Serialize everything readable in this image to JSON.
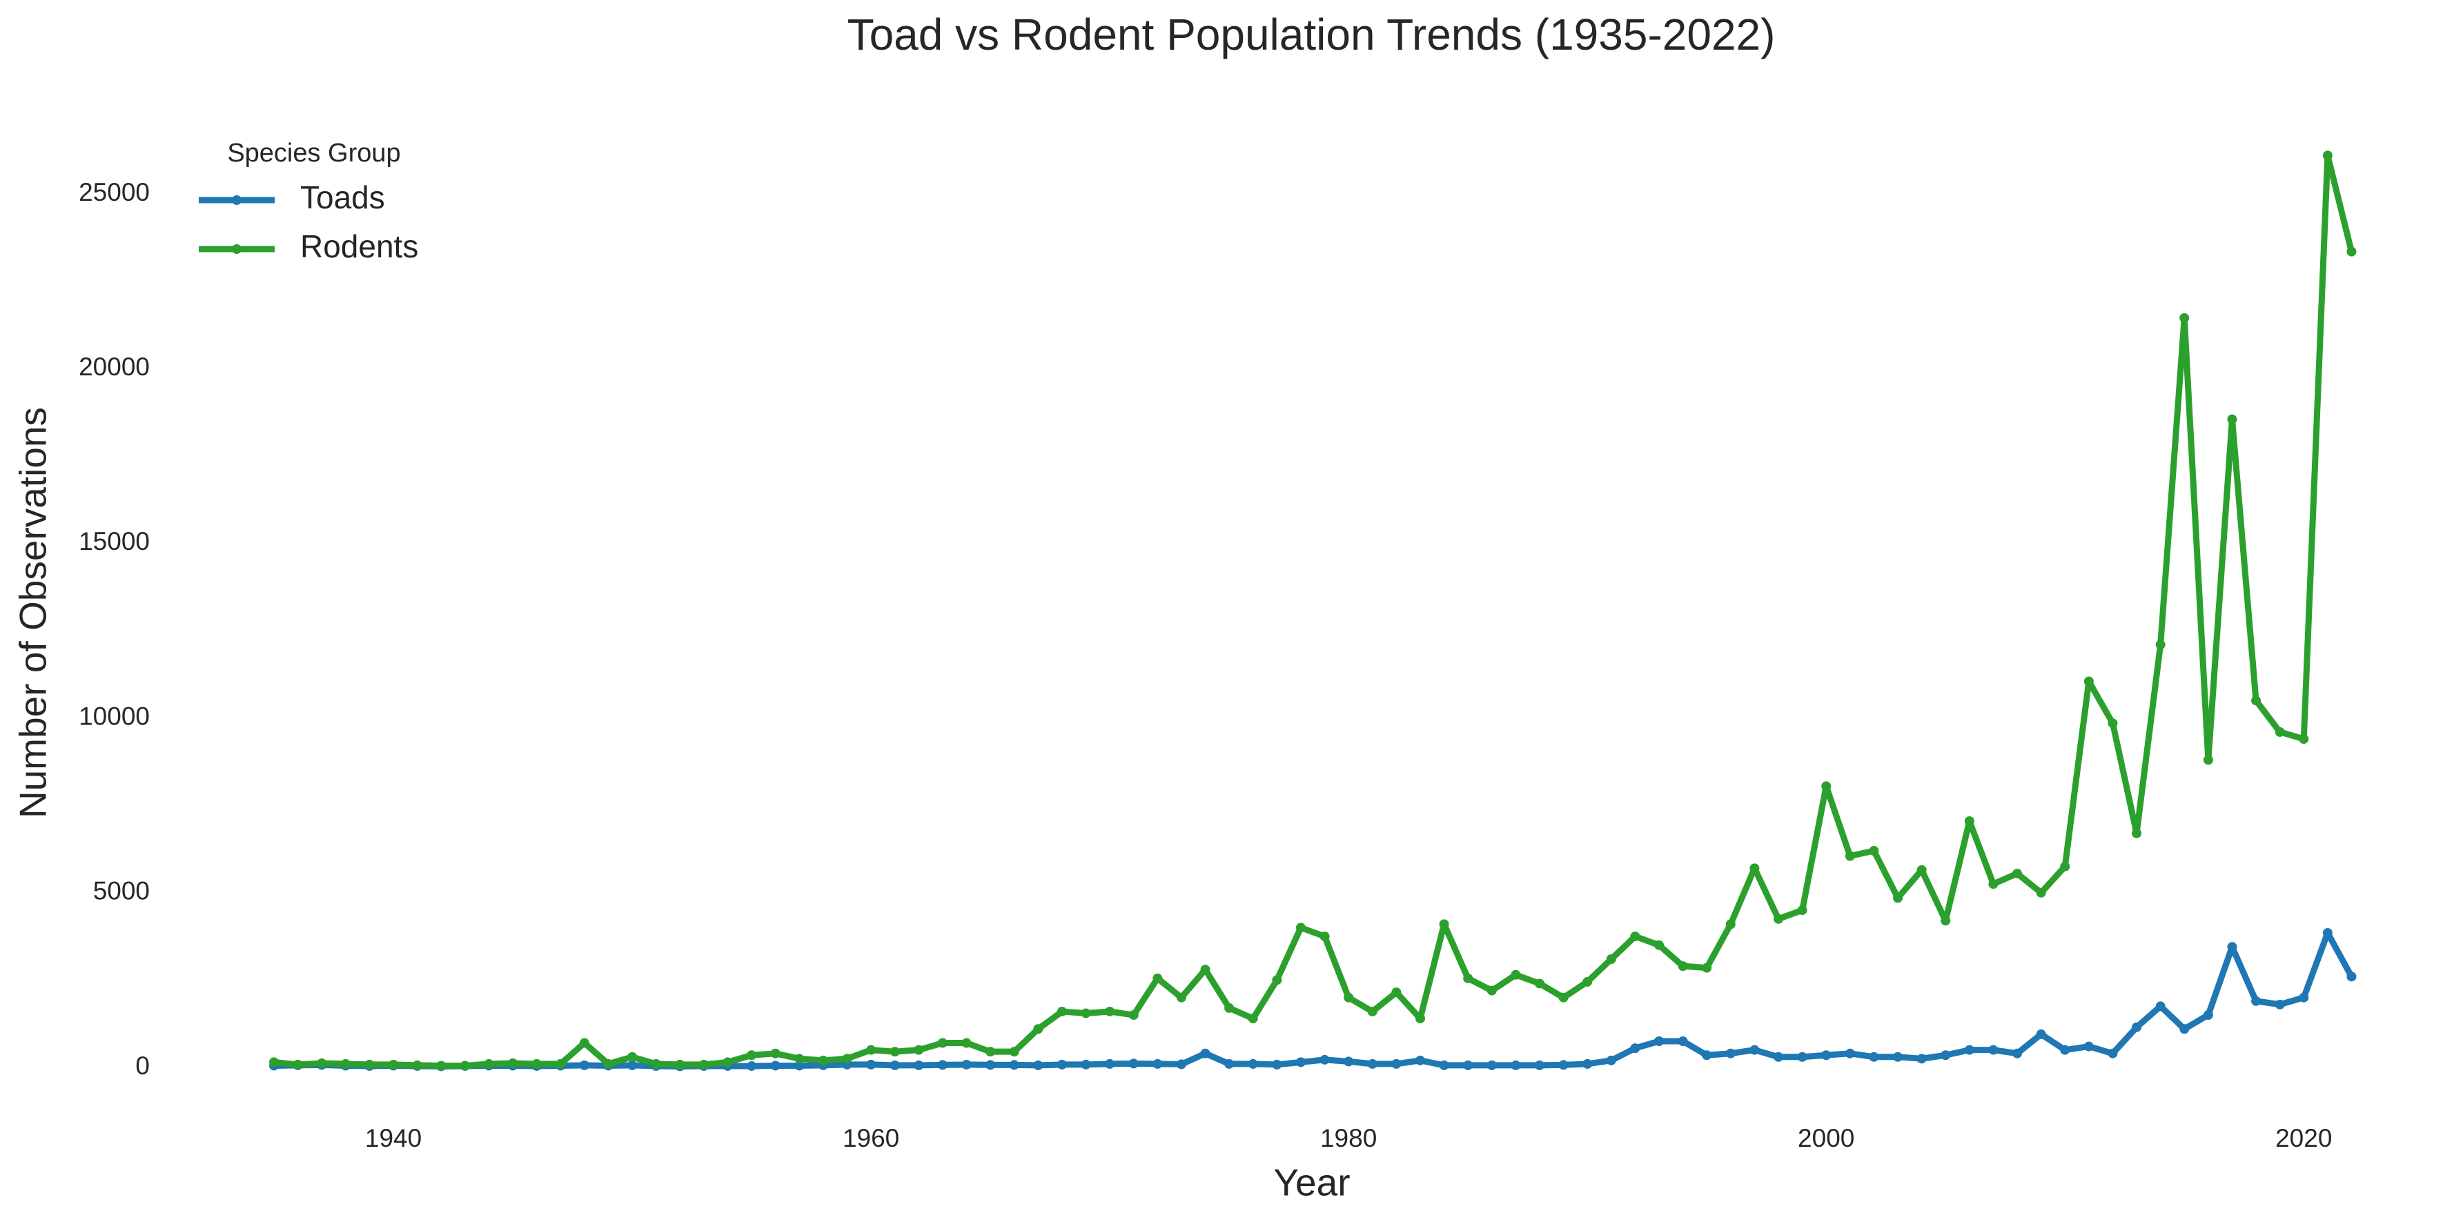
{
  "chart_data": {
    "type": "line",
    "title": "Toad vs Rodent Population Trends (1935-2022)",
    "x_label": "Year",
    "y_label": "Number of Observations",
    "legend_title": "Species Group",
    "legend_position": "upper left",
    "grid": false,
    "x": [
      1935,
      1936,
      1937,
      1938,
      1939,
      1940,
      1941,
      1942,
      1943,
      1944,
      1945,
      1946,
      1947,
      1948,
      1949,
      1950,
      1951,
      1952,
      1953,
      1954,
      1955,
      1956,
      1957,
      1958,
      1959,
      1960,
      1961,
      1962,
      1963,
      1964,
      1965,
      1966,
      1967,
      1968,
      1969,
      1970,
      1971,
      1972,
      1973,
      1974,
      1975,
      1976,
      1977,
      1978,
      1979,
      1980,
      1981,
      1982,
      1983,
      1984,
      1985,
      1986,
      1987,
      1988,
      1989,
      1990,
      1991,
      1992,
      1993,
      1994,
      1995,
      1996,
      1997,
      1998,
      1999,
      2000,
      2001,
      2002,
      2003,
      2004,
      2005,
      2006,
      2007,
      2008,
      2009,
      2010,
      2011,
      2012,
      2013,
      2014,
      2015,
      2016,
      2017,
      2018,
      2019,
      2020,
      2021,
      2022
    ],
    "series": [
      {
        "name": "Toads",
        "color": "#1f77b4",
        "values": [
          50,
          60,
          70,
          50,
          40,
          50,
          40,
          30,
          40,
          50,
          50,
          40,
          50,
          60,
          50,
          60,
          40,
          30,
          40,
          40,
          40,
          50,
          50,
          60,
          80,
          80,
          60,
          60,
          70,
          80,
          70,
          70,
          60,
          80,
          80,
          100,
          110,
          100,
          90,
          400,
          100,
          100,
          80,
          150,
          220,
          170,
          100,
          100,
          200,
          60,
          60,
          60,
          60,
          60,
          70,
          100,
          200,
          550,
          750,
          750,
          350,
          400,
          500,
          300,
          300,
          350,
          400,
          300,
          300,
          250,
          350,
          500,
          500,
          400,
          950,
          500,
          600,
          400,
          1150,
          1750,
          1100,
          1500,
          3450,
          1900,
          1800,
          2000,
          3850,
          2600
        ]
      },
      {
        "name": "Rodents",
        "color": "#2ca02c",
        "values": [
          150,
          80,
          120,
          100,
          80,
          80,
          60,
          50,
          50,
          100,
          120,
          100,
          100,
          700,
          100,
          300,
          100,
          80,
          80,
          150,
          350,
          400,
          250,
          200,
          250,
          500,
          450,
          500,
          700,
          700,
          450,
          450,
          1100,
          1600,
          1550,
          1600,
          1500,
          2550,
          2000,
          2800,
          1700,
          1400,
          2500,
          4000,
          3750,
          2000,
          1600,
          2150,
          1400,
          4100,
          2550,
          2200,
          2650,
          2400,
          2000,
          2450,
          3100,
          3750,
          3500,
          2900,
          2850,
          4100,
          5700,
          4250,
          4500,
          8050,
          6050,
          6200,
          4850,
          5650,
          4200,
          7050,
          5250,
          5550,
          5000,
          5750,
          11050,
          9850,
          6700,
          12100,
          21450,
          8800,
          18550,
          10500,
          9600,
          9400,
          26100,
          23350
        ]
      }
    ],
    "xlim": [
      1930.65,
      2026.35
    ],
    "ylim": [
      -1300,
      27300
    ],
    "xticks": [
      1940,
      1960,
      1980,
      2000,
      2020
    ],
    "yticks": [
      0,
      5000,
      10000,
      15000,
      20000,
      25000
    ]
  }
}
